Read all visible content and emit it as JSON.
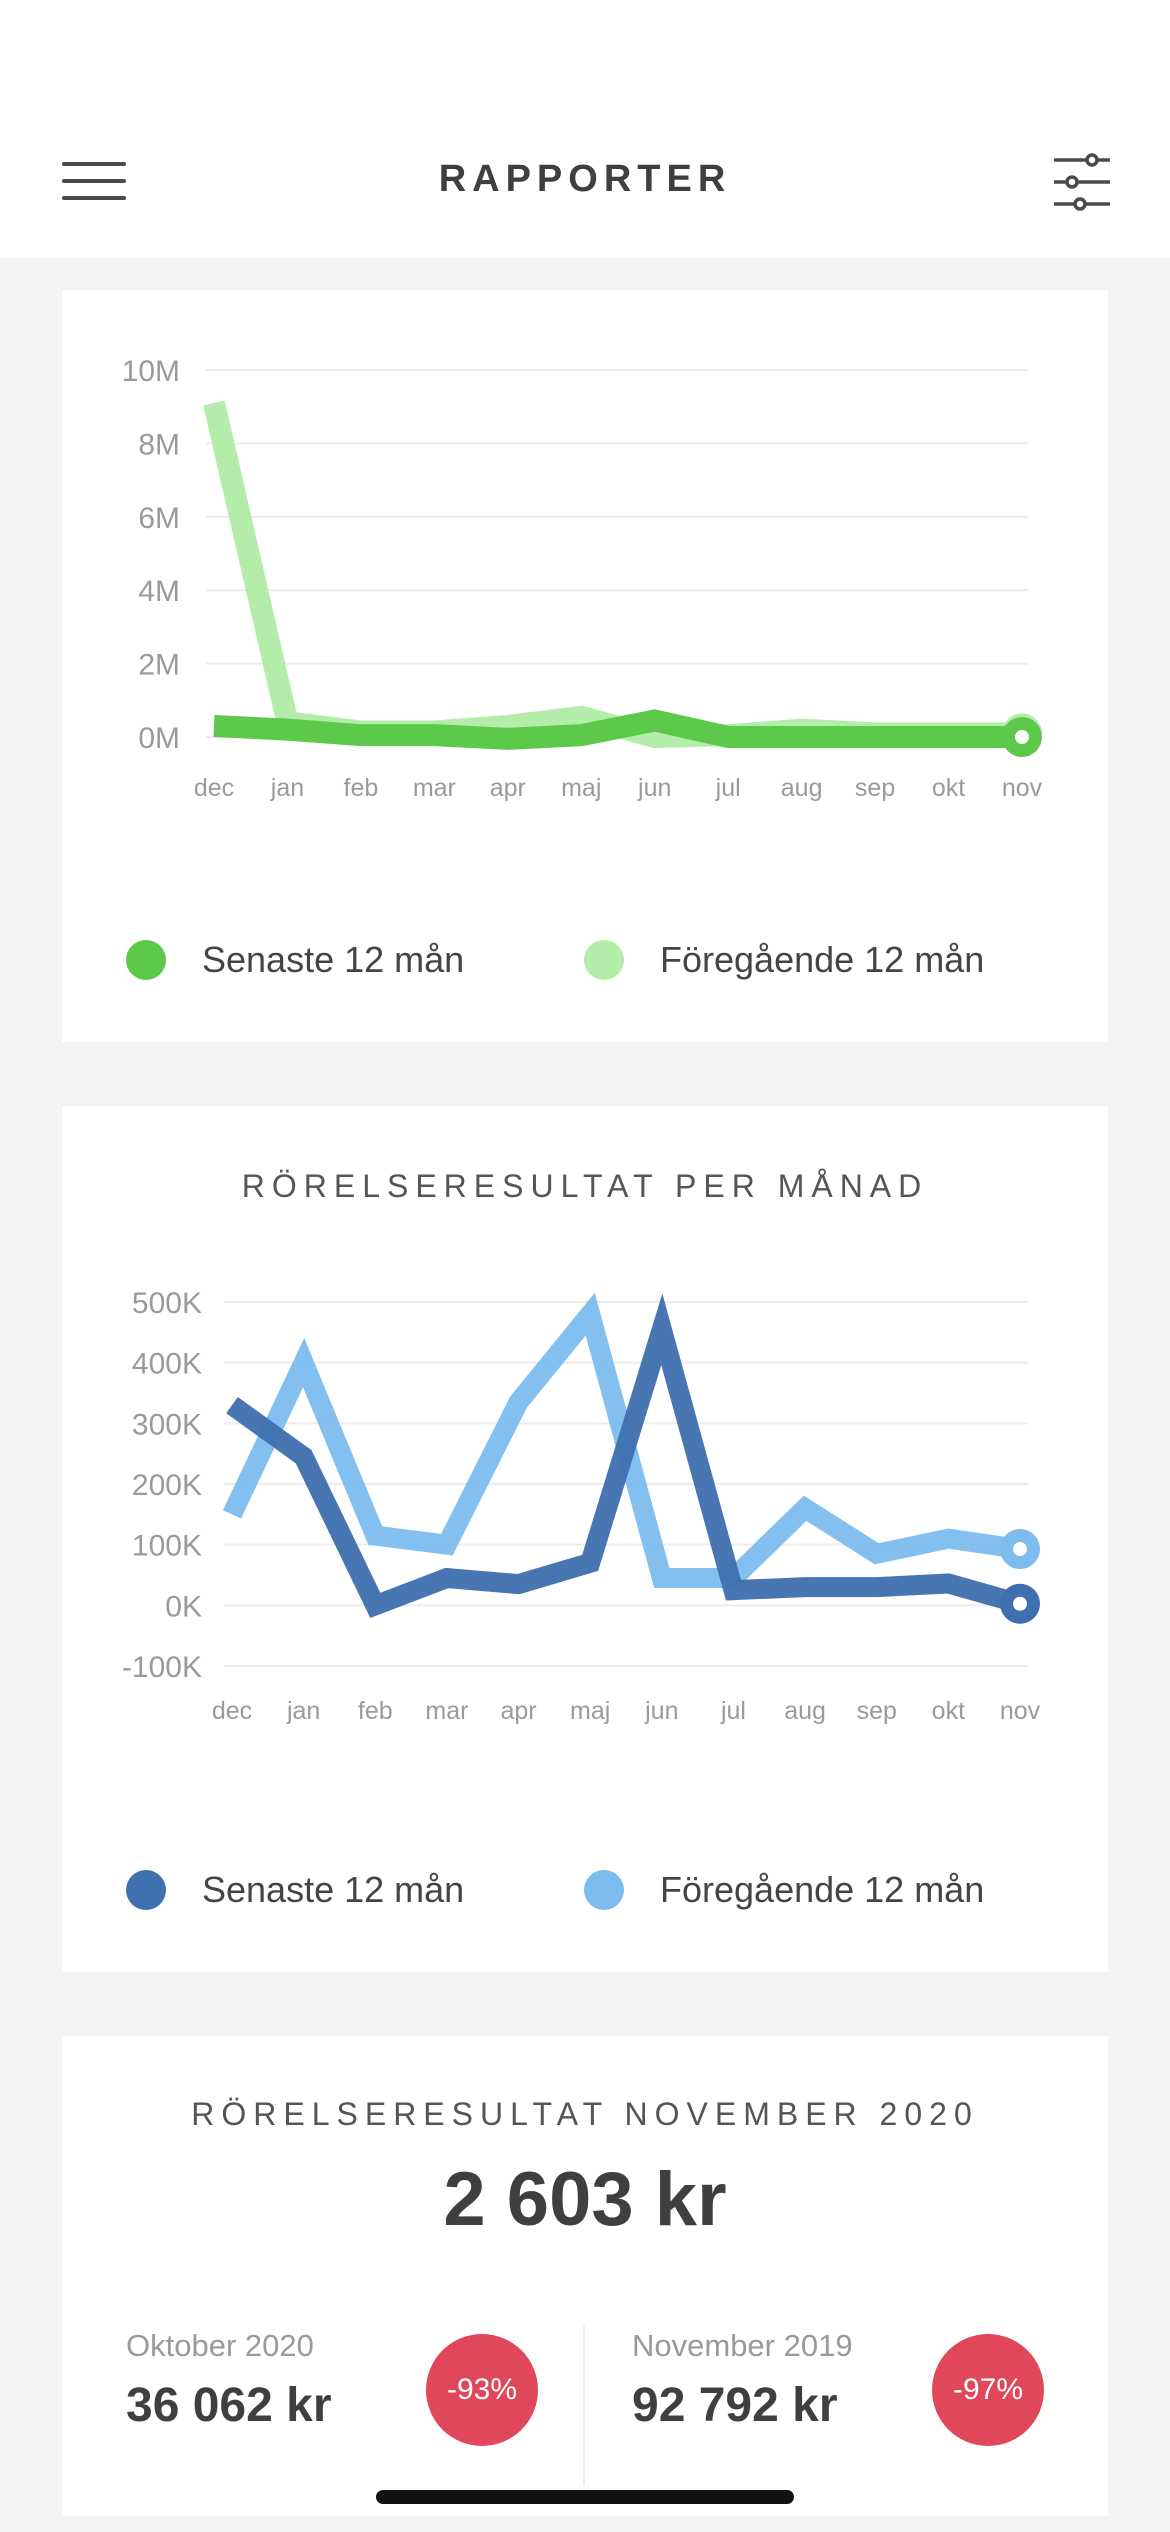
{
  "header": {
    "title": "RAPPORTER",
    "menu_icon": "hamburger-menu-icon",
    "filter_icon": "sliders-filter-icon"
  },
  "colors": {
    "green_latest": "#5cc94a",
    "green_previous": "#b4ecaa",
    "blue_latest": "#3e6fae",
    "blue_previous": "#7dbdee",
    "negative_badge": "#e0475b"
  },
  "chart_data": [
    {
      "type": "line",
      "title": "",
      "categories": [
        "dec",
        "jan",
        "feb",
        "mar",
        "apr",
        "maj",
        "jun",
        "jul",
        "aug",
        "sep",
        "okt",
        "nov"
      ],
      "ylim": [
        0,
        10000000
      ],
      "y_ticks": [
        "10M",
        "8M",
        "6M",
        "4M",
        "2M",
        "0M"
      ],
      "grid": true,
      "legend_position": "bottom",
      "series": [
        {
          "name": "Senaste 12 mån",
          "color": "#5cc94a",
          "values": [
            300000,
            200000,
            50000,
            50000,
            -50000,
            50000,
            450000,
            0,
            0,
            0,
            0,
            0
          ]
        },
        {
          "name": "Föregående 12 mån",
          "color": "#b4ecaa",
          "values": [
            9100000,
            400000,
            150000,
            150000,
            300000,
            550000,
            0,
            50000,
            200000,
            100000,
            100000,
            100000
          ]
        }
      ]
    },
    {
      "type": "line",
      "title": "RÖRELSERESULTAT PER MÅNAD",
      "categories": [
        "dec",
        "jan",
        "feb",
        "mar",
        "apr",
        "maj",
        "jun",
        "jul",
        "aug",
        "sep",
        "okt",
        "nov"
      ],
      "ylim": [
        -100000,
        500000
      ],
      "y_ticks": [
        "500K",
        "400K",
        "300K",
        "200K",
        "100K",
        "0K",
        "-100K"
      ],
      "grid": true,
      "legend_position": "bottom",
      "series": [
        {
          "name": "Senaste 12 mån",
          "color": "#3e6fae",
          "values": [
            330000,
            245000,
            0,
            45000,
            35000,
            70000,
            455000,
            25000,
            30000,
            30000,
            36062,
            2603
          ]
        },
        {
          "name": "Föregående 12 mån",
          "color": "#7dbdee",
          "values": [
            150000,
            400000,
            115000,
            100000,
            335000,
            480000,
            45000,
            45000,
            160000,
            85000,
            110000,
            92792
          ]
        }
      ]
    }
  ],
  "summary": {
    "title": "RÖRELSERESULTAT NOVEMBER 2020",
    "value": "2 603 kr",
    "compare": [
      {
        "label": "Oktober 2020",
        "value": "36 062 kr",
        "change": "-93%"
      },
      {
        "label": "November 2019",
        "value": "92 792 kr",
        "change": "-97%"
      }
    ]
  }
}
